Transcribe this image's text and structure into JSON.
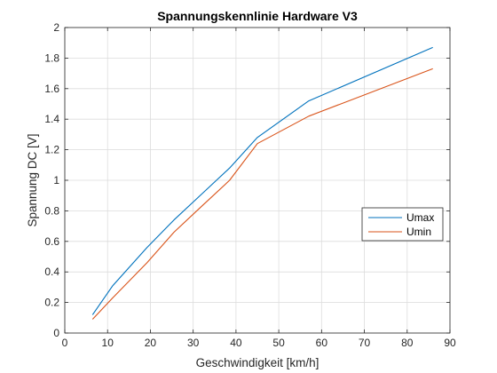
{
  "chart_data": {
    "type": "line",
    "title": "Spannungskennlinie Hardware V3",
    "xlabel": "Geschwindigkeit [km/h]",
    "ylabel": "Spannung DC [V]",
    "xlim": [
      0,
      90
    ],
    "ylim": [
      0,
      2
    ],
    "xticks": [
      0,
      10,
      20,
      30,
      40,
      50,
      60,
      70,
      80,
      90
    ],
    "yticks": [
      0,
      0.2,
      0.4,
      0.6,
      0.8,
      1,
      1.2,
      1.4,
      1.6,
      1.8,
      2
    ],
    "grid": true,
    "legend_position": "right",
    "series": [
      {
        "name": "Umax",
        "color": "#0072BD",
        "x": [
          6.5,
          11.2,
          19.2,
          25.5,
          32,
          38.5,
          45,
          57,
          86
        ],
        "y": [
          0.12,
          0.31,
          0.56,
          0.74,
          0.91,
          1.08,
          1.28,
          1.52,
          1.87
        ]
      },
      {
        "name": "Umin",
        "color": "#D95319",
        "x": [
          6.5,
          11.2,
          19.2,
          25.5,
          32,
          38.5,
          45,
          57,
          86
        ],
        "y": [
          0.09,
          0.23,
          0.46,
          0.66,
          0.83,
          1.0,
          1.24,
          1.42,
          1.73
        ]
      }
    ]
  }
}
